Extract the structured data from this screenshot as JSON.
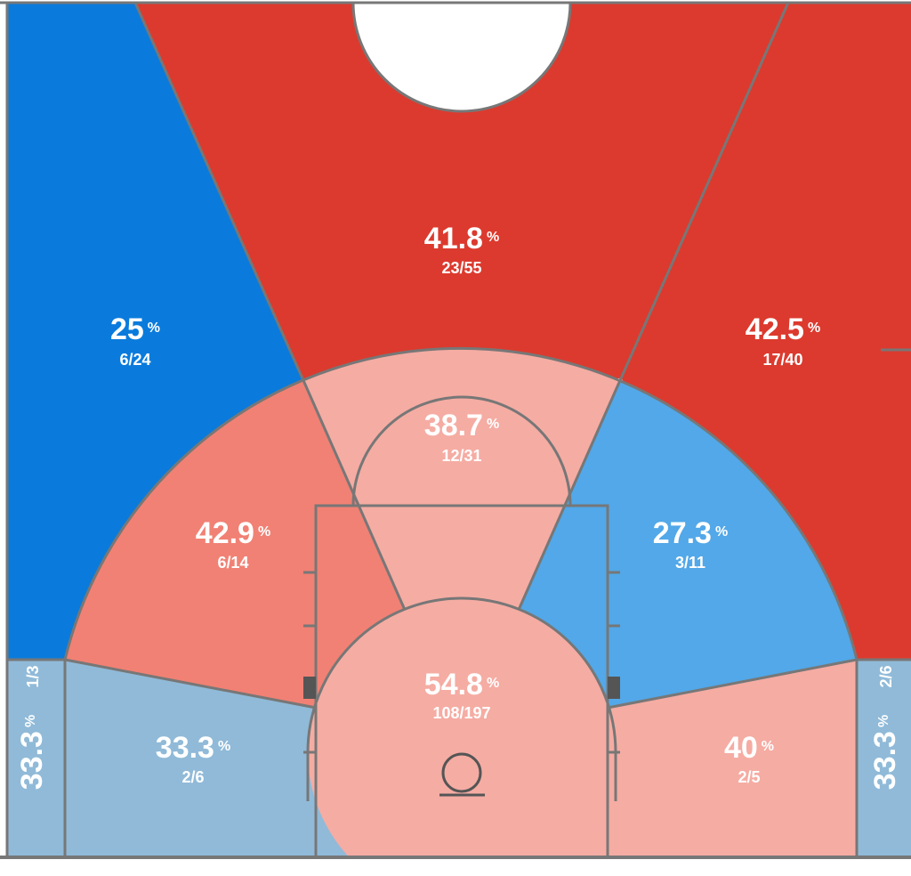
{
  "pct_unit": "%",
  "zones": [
    {
      "pct": 41.8,
      "shots": "23/55",
      "color": "#dc3a2e"
    },
    {
      "pct": 25,
      "shots": "6/24",
      "color": "#0a7bdc"
    },
    {
      "pct": 42.5,
      "shots": "17/40",
      "color": "#dc3a2e"
    },
    {
      "pct": 38.7,
      "shots": "12/31",
      "color": "#f5aca3"
    },
    {
      "pct": 42.9,
      "shots": "6/14",
      "color": "#f18174"
    },
    {
      "pct": 27.3,
      "shots": "3/11",
      "color": "#52a8e8"
    },
    {
      "pct": 54.8,
      "shots": "108/197",
      "color": "#f5aca3"
    },
    {
      "pct": 33.3,
      "shots": "2/6",
      "color": "#90bad8"
    },
    {
      "pct": 40,
      "shots": "2/5",
      "color": "#f5aca3"
    },
    {
      "pct": 33.3,
      "shots": "1/3",
      "color": "#90bad8"
    },
    {
      "pct": 33.3,
      "shots": "2/6",
      "color": "#90bad8"
    }
  ]
}
